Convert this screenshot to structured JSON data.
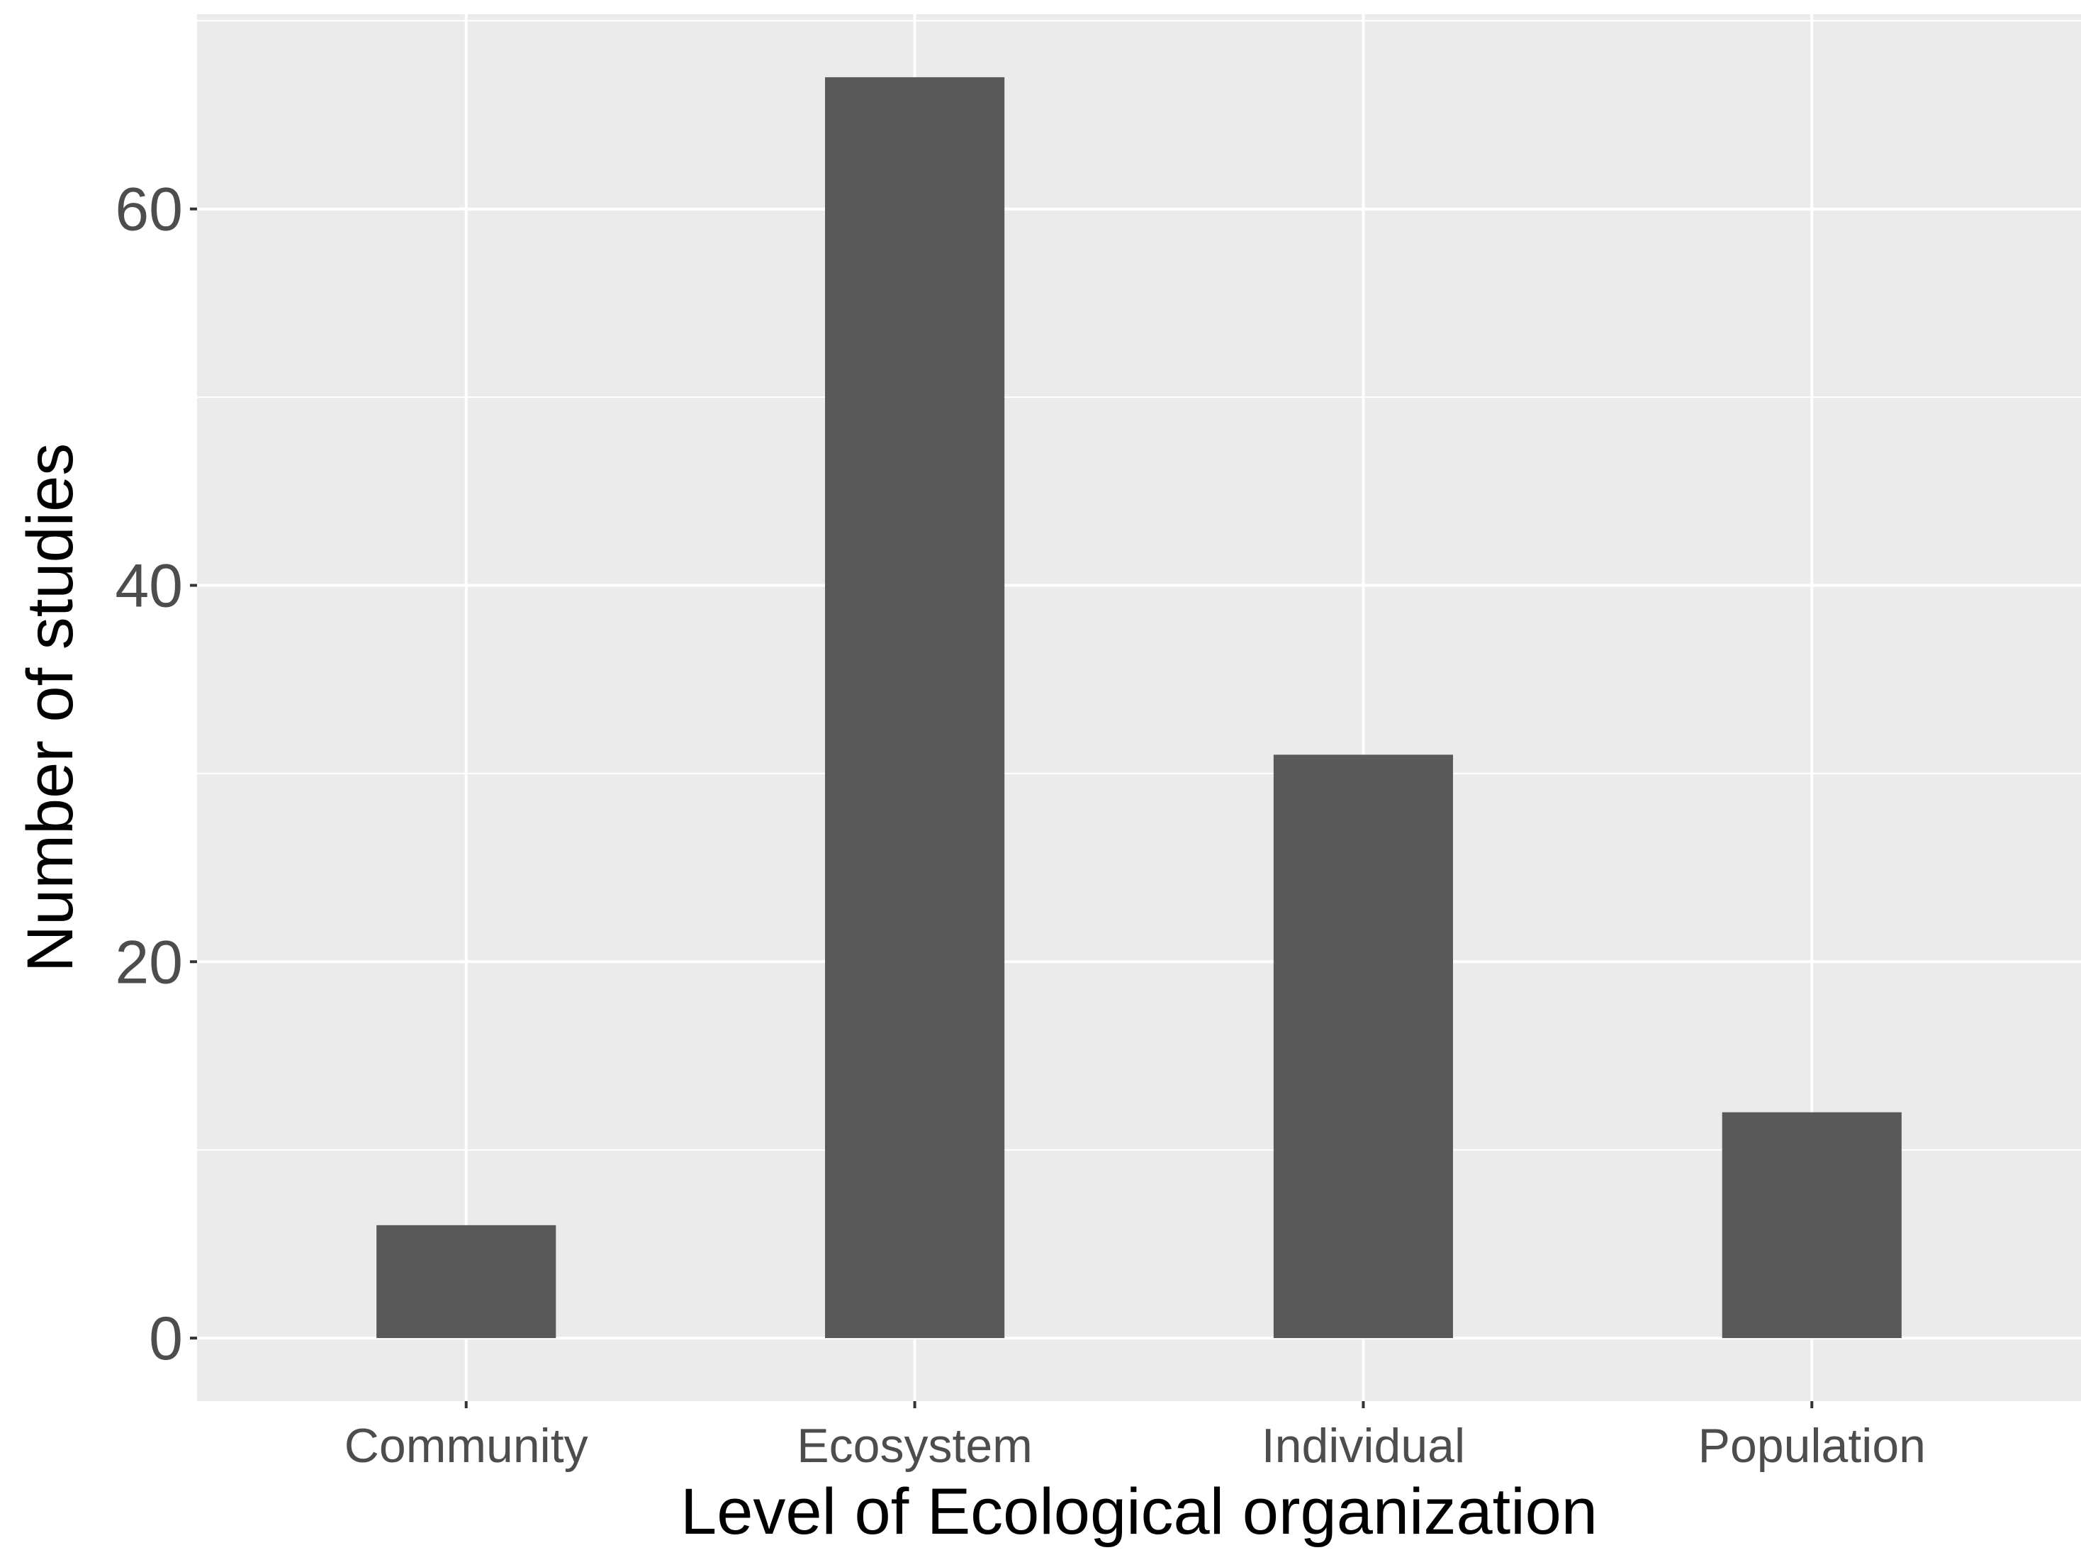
{
  "chart_data": {
    "type": "bar",
    "categories": [
      "Community",
      "Ecosystem",
      "Individual",
      "Population"
    ],
    "values": [
      6,
      67,
      31,
      12
    ],
    "title": "",
    "xlabel": "Level of Ecological organization",
    "ylabel": "Number of studies",
    "ylim": [
      -3.35,
      70.35
    ],
    "yticks": [
      0,
      20,
      40,
      60
    ],
    "grid": true,
    "legend": "none",
    "colors": {
      "bar": "#595959",
      "panel_background": "#ebebeb",
      "grid": "#ffffff",
      "tick_label": "#4d4d4d",
      "axis_title": "#000000"
    }
  }
}
